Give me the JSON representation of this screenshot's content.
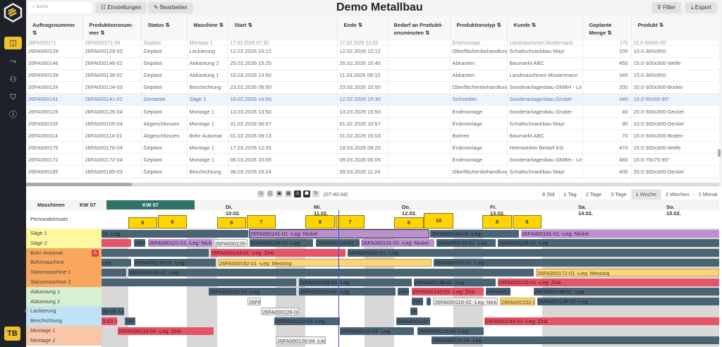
{
  "app": {
    "title": "Demo Metallbau",
    "avatar": "TB"
  },
  "sidebar": {
    "items": [
      {
        "icon": "layout-icon",
        "active": true
      },
      {
        "icon": "analytics-icon"
      },
      {
        "icon": "users-settings-icon"
      },
      {
        "icon": "shield-settings-icon"
      },
      {
        "icon": "help-icon"
      }
    ]
  },
  "toolbar": {
    "search_placeholder": "Suche",
    "settings": "Einstellungen",
    "edit": "Bearbeiten",
    "filter": "Filter",
    "export": "Export"
  },
  "table": {
    "columns": [
      "Auftragsnummer ⇅",
      "Produktionsnum-mer ⇅",
      "Status ⇅",
      "Maschine ⇅",
      "Start ⇅",
      "Ende ⇅",
      "Bedarf an Produkti-onsminuten ⇅",
      "Produktionstyp ⇅",
      "Kunde ⇅",
      "Geplante Menge ⇅",
      "Produkt ⇅"
    ],
    "rows": [
      [
        "26FA000171",
        "26FA000171-04",
        "Geplant",
        "Montage 1",
        "17.03.2026 07:30",
        "17.03.2026 12:03",
        "",
        "Endmontage",
        "Landmaschinen Mustermann",
        "170",
        "15.0-50x50-90°"
      ],
      [
        "26FA000129",
        "26FA000129-03",
        "Geplant",
        "Lackierung",
        "12.02.2026 10:12",
        "12.02.2026 12:12",
        "",
        "Oberflächenbehandlung",
        "Schaltschrankbau Mayr",
        "100",
        "10.0-300x900"
      ],
      [
        "26FA000146",
        "26FA000146-02",
        "Geplant",
        "Abkantung 2",
        "25.02.2026 15:25",
        "26.02.2026 10:40",
        "",
        "Abkanten",
        "Baumarkt ABC",
        "450",
        "15.0-300x300-Welle"
      ],
      [
        "26FA000139",
        "26FA000139-02",
        "Geplant",
        "Abkantung 1",
        "10.03.2026 13:50",
        "11.03.2026 09:10",
        "",
        "Abkanten",
        "Landmaschinen Mustermann",
        "340",
        "15.0-300x900"
      ],
      [
        "26FA000124",
        "26FA000124-03",
        "Geplant",
        "Beschichtung",
        "23.02.2026 06:50",
        "23.02.2026 10:50",
        "",
        "Oberflächenbehandlung",
        "Sonderanlagenbau GMBH - Linz",
        "200",
        "20.0-300x300-Boden"
      ],
      [
        "26FA000141",
        "26FA000141-01",
        "Gestartet",
        "Säge 1",
        "10.02.2026 14:50",
        "12.02.2026 15:30",
        "",
        "Schneiden",
        "Sonderanlagenbau Gruber",
        "340",
        "15.0-50x50-90°"
      ],
      [
        "26FA000125",
        "26FA000125-04",
        "Geplant",
        "Montage 1",
        "13.03.2026 13:50",
        "13.03.2026 15:50",
        "",
        "Endmontage",
        "Sonderanlagenbau Gruber",
        "40",
        "20.0-300x300-Deckel"
      ],
      [
        "26FA000105",
        "26FA000105-04",
        "Abgeschlossen",
        "Montage 1",
        "01.02.2026 06:57",
        "01.02.2026 10:57",
        "",
        "Endmontage",
        "Schaltschrankbau Mayr",
        "80",
        "10.0-300x300-Deckel"
      ],
      [
        "26FA000114",
        "26FA000114-01",
        "Abgeschlossen",
        "Bohr-Automat",
        "01.02.2026 09:13",
        "01.02.2026 15:03",
        "",
        "Bohren",
        "Baumarkt ABC",
        "70",
        "15.0-300x300-Boden"
      ],
      [
        "26FA000176",
        "26FA000176-04",
        "Geplant",
        "Montage 1",
        "17.03.2026 12:35",
        "18.03.2026 08:20",
        "",
        "Endmontage",
        "Heimwerker Bedarf KG",
        "470",
        "15.0-300x300-Welle"
      ],
      [
        "26FA000172",
        "26FA000172-04",
        "Geplant",
        "Montage 1",
        "06.03.2026 10:05",
        "09.03.2026 06:05",
        "",
        "Endmontage",
        "Sonderanlagenbau GMBH - Linz",
        "480",
        "15.0-75x75-90°"
      ],
      [
        "26FA000185",
        "26FA000185-03",
        "Geplant",
        "Beschichtung",
        "06.03.2026 19:24",
        "09.03.2026 11:24",
        "",
        "Oberflächenbehandlung",
        "Schaltschrankbau Mayr",
        "400",
        "20.0-300x300-Deckel"
      ]
    ],
    "selected_row": 5
  },
  "gantt": {
    "tool_icons": [
      "clock-icon",
      "print-icon",
      "comment-icon",
      "calendar-icon",
      "warning-icon",
      "user-icon",
      "refresh-icon"
    ],
    "clock": "(07:40:04)",
    "zoom_options": [
      "8 Std",
      "1 Tag",
      "2 Tage",
      "3 Tage",
      "1 Woche",
      "2 Wochen",
      "1 Monat"
    ],
    "zoom_selected": "1 Woche",
    "header": {
      "machines": "Maschinen",
      "kw_label": "KW 07",
      "kw_bar": "KW 07",
      "days": [
        "Di. 10.02.",
        "Mi. 11.02.",
        "Do. 12.02.",
        "Fr. 13.02.",
        "Sa. 14.02.",
        "So. 15.02."
      ]
    },
    "staffing_label": "Personaleinsatz",
    "staffing": [
      "6",
      "8",
      "6",
      "7",
      "8",
      "7",
      "6",
      "10",
      "8",
      "8"
    ],
    "colors": {
      "dark": "#4b6474",
      "red": "#e55467",
      "purple": "#bb90cf",
      "yellow": "#f9d67b",
      "white": "#f1f1f1",
      "now_line": "#4a4adf"
    },
    "rows": [
      {
        "name": "Säge 1",
        "color": "#fdf7a0",
        "bars": [
          {
            "label": "01 -Leg:",
            "kind": "dark"
          },
          {
            "label": "26FA000141-01 -Leg: Nickel",
            "kind": "purple"
          },
          {
            "label": "26FA000184-01 -Leg:",
            "kind": "dark"
          },
          {
            "label": "26FA000181-01 -Leg: Nickel",
            "kind": "purple"
          }
        ]
      },
      {
        "name": "Säge 2",
        "color": "#fdf7a0",
        "bars": [
          {
            "label": "",
            "kind": "red"
          },
          {
            "label": "26FA",
            "kind": "dark"
          },
          {
            "label": "26FA000121-01 -Leg: Nicke",
            "kind": "purple"
          },
          {
            "label": "26FA000126-0",
            "kind": "white"
          },
          {
            "label": "26FA000129-01 -Leg",
            "kind": "dark"
          },
          {
            "label": "26FA000124-01 -L",
            "kind": "dark"
          },
          {
            "label": "26FA000131-01 -Leg: Nickel",
            "kind": "purple"
          },
          {
            "label": "26FA000135-01 -Leg",
            "kind": "dark"
          },
          {
            "label": "26FA000128-01 -Leg",
            "kind": "dark"
          }
        ]
      },
      {
        "name": "Bohr-Automat",
        "color": "#f9a75c",
        "warning": true,
        "bars": [
          {
            "label": "",
            "kind": "dark"
          },
          {
            "label": "26FA000143-01 -Leg: Zink",
            "kind": "red"
          },
          {
            "label": "26FA000160-01 -Leg",
            "kind": "dark"
          }
        ]
      },
      {
        "name": "Bohrmaschine",
        "color": "#f9a75c",
        "bars": [
          {
            "label": "Leg",
            "kind": "dark"
          },
          {
            "label": "26FA000149-01 -Leg:",
            "kind": "dark"
          },
          {
            "label": "26FA000152-01 -Leg: Messing",
            "kind": "yellow"
          },
          {
            "label": "26FA000167-01 -Leg:",
            "kind": "dark"
          }
        ]
      },
      {
        "name": "Stanzmaschine 1",
        "color": "#f9a75c",
        "bars": [
          {
            "label": "",
            "kind": "dark"
          },
          {
            "label": "26FA000148-01 -Leg:",
            "kind": "dark"
          },
          {
            "label": "26FA000172-01 -Leg: Messing",
            "kind": "yellow"
          }
        ]
      },
      {
        "name": "Stanzmaschine 2",
        "color": "#f9a75c",
        "bars": [
          {
            "label": "",
            "kind": "dark"
          },
          {
            "label": "26FA000108-01 -Leg:",
            "kind": "dark"
          },
          {
            "label": "26FA000138-01 -Leg:",
            "kind": "dark"
          },
          {
            "label": "26FA000103-01 -Leg: Zink",
            "kind": "red"
          }
        ]
      },
      {
        "name": "Abkantung 1",
        "color": "#d8f0d2",
        "bars": [
          {
            "label": "26FA000120-02 -Leg:",
            "kind": "dark"
          },
          {
            "label": "26FA000115-02 -Leg:",
            "kind": "dark"
          },
          {
            "label": "26FA",
            "kind": "dark"
          },
          {
            "label": "26FA000143-02 -Leg: Zink",
            "kind": "red"
          },
          {
            "label": "26FA0001",
            "kind": "dark"
          },
          {
            "label": "26FA000148-02 -Leg:",
            "kind": "dark"
          }
        ]
      },
      {
        "name": "Abkantung 2",
        "color": "#d8f0d2",
        "bars": [
          {
            "label": "26FA",
            "kind": "white"
          },
          {
            "label": "26FA",
            "kind": "dark"
          },
          {
            "label": "2",
            "kind": "dark"
          },
          {
            "label": "26FA000116-02 -Leg: Nicke",
            "kind": "white"
          },
          {
            "label": "26FA000152-0",
            "kind": "yellow"
          },
          {
            "label": "26FA000138-02 -Leg:",
            "kind": "dark"
          }
        ]
      },
      {
        "name": "Lackierung",
        "color": "#c0e2f5",
        "bars": [
          {
            "label": "30-03 -Le",
            "kind": "dark"
          },
          {
            "label": "26FA000126-03",
            "kind": "white"
          },
          {
            "label": "26",
            "kind": "dark"
          }
        ]
      },
      {
        "name": "Beschichtung",
        "color": "#c0e2f5",
        "bars": [
          {
            "label": "3-03 -L",
            "kind": "red"
          },
          {
            "label": "26F",
            "kind": "dark"
          },
          {
            "label": "26FA000120-03 -Leg",
            "kind": "dark"
          },
          {
            "label": "26FA000115-0",
            "kind": "dark"
          },
          {
            "label": "26FA000143-03 -Leg: Zink",
            "kind": "red"
          }
        ]
      },
      {
        "name": "Montage 1",
        "color": "#f9c6aa",
        "bars": [
          {
            "label": "26FA000133-04 -Leg: Zink",
            "kind": "red"
          },
          {
            "label": "26FA000120-04 -Leg:",
            "kind": "dark"
          },
          {
            "label": "26FA000129-04 -Leg:",
            "kind": "dark"
          }
        ]
      },
      {
        "name": "Montage 2",
        "color": "#f9c6aa",
        "bars": [
          {
            "label": "26FA000126-04 -Leg",
            "kind": "white"
          },
          {
            "label": "26FA000115-04 -Leg",
            "kind": "dark"
          }
        ]
      }
    ]
  }
}
